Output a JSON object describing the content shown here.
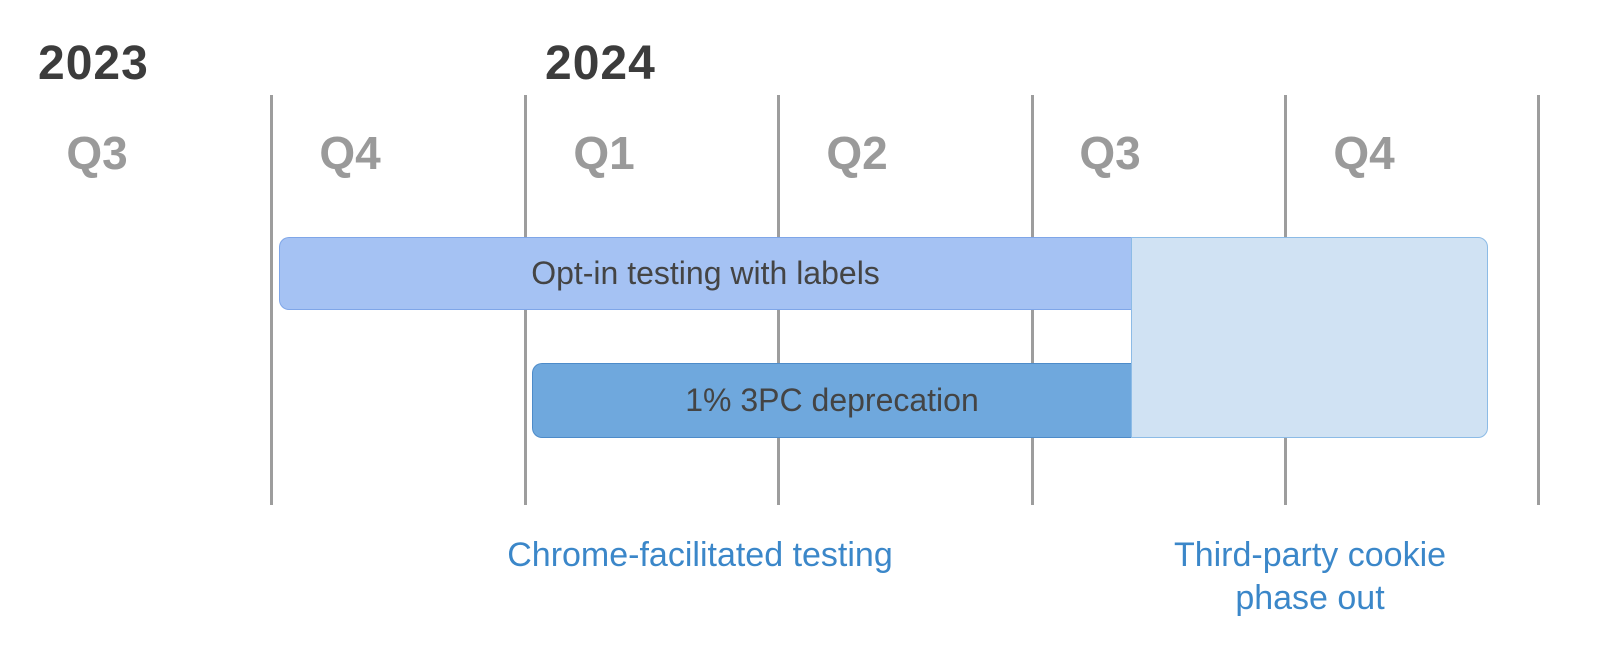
{
  "years": [
    {
      "label": "2023"
    },
    {
      "label": "2024"
    }
  ],
  "quarters": [
    {
      "label": "Q3"
    },
    {
      "label": "Q4"
    },
    {
      "label": "Q1"
    },
    {
      "label": "Q2"
    },
    {
      "label": "Q3"
    },
    {
      "label": "Q4"
    }
  ],
  "bars": {
    "optin": {
      "label": "Opt-in testing with labels",
      "color": "#a5c2f3"
    },
    "deprecation": {
      "label": "1% 3PC deprecation",
      "color": "#6fa8dd"
    },
    "phaseout": {
      "color": "#d0e2f3"
    }
  },
  "captions": {
    "testing": "Chrome-facilitated testing",
    "phaseout_line1": "Third-party cookie",
    "phaseout_line2": "phase out"
  },
  "colors": {
    "year_text": "#3c3c3c",
    "quarter_text": "#9a9a9a",
    "divider": "#9d9d9d",
    "caption_text": "#3b87c9"
  }
}
